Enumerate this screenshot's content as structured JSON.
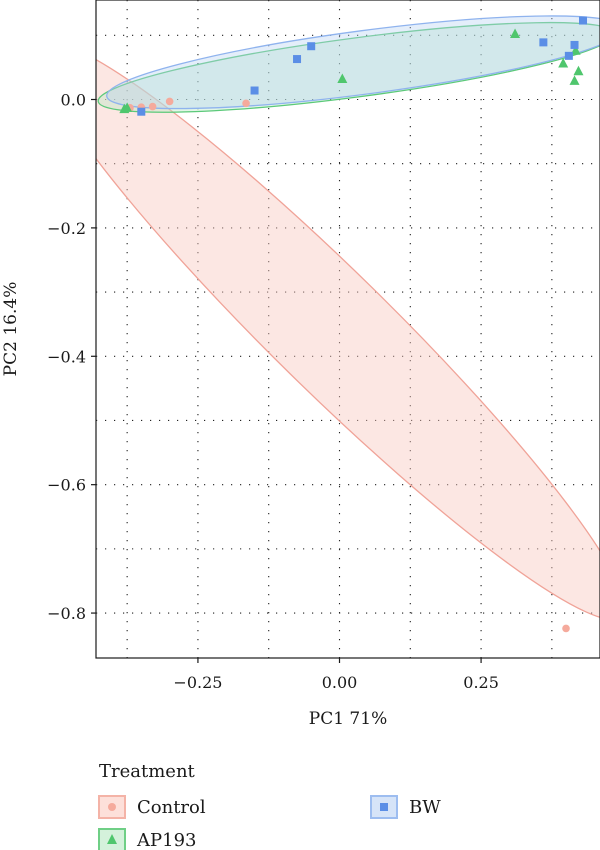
{
  "chart_data": {
    "type": "scatter",
    "xlabel": "PC1 71%",
    "ylabel": "PC2 16.4%",
    "xlim": [
      -0.43,
      0.46
    ],
    "ylim": [
      -0.87,
      0.155
    ],
    "x_ticks": [
      -0.25,
      0.0,
      0.25
    ],
    "x_tick_labels": [
      "−0.25",
      "0.00",
      "0.25"
    ],
    "y_ticks": [
      0.0,
      -0.2,
      -0.4,
      -0.6,
      -0.8
    ],
    "y_tick_labels": [
      "0.0",
      "−0.2",
      "−0.4",
      "−0.6",
      "−0.8"
    ],
    "grid": "dotted",
    "legend": {
      "title": "Treatment",
      "position": "bottom",
      "entries": [
        "Control",
        "AP193",
        "BW"
      ]
    },
    "series": [
      {
        "name": "Control",
        "marker": "circle",
        "color": "#f4a89a",
        "points": [
          {
            "x": -0.37,
            "y": -0.013
          },
          {
            "x": -0.35,
            "y": -0.012
          },
          {
            "x": -0.33,
            "y": -0.011
          },
          {
            "x": -0.3,
            "y": -0.003
          },
          {
            "x": -0.165,
            "y": -0.006
          },
          {
            "x": 0.4,
            "y": -0.824
          }
        ],
        "ellipse": {
          "cx": -0.015,
          "cy": -0.36,
          "rx": 0.72,
          "ry": 0.105,
          "angle_deg": 44.5
        }
      },
      {
        "name": "AP193",
        "marker": "triangle",
        "color": "#5cc97a",
        "points": [
          {
            "x": -0.38,
            "y": -0.015
          },
          {
            "x": -0.375,
            "y": -0.013
          },
          {
            "x": 0.005,
            "y": 0.032
          },
          {
            "x": 0.31,
            "y": 0.102
          },
          {
            "x": 0.395,
            "y": 0.056
          },
          {
            "x": 0.417,
            "y": 0.076
          },
          {
            "x": 0.422,
            "y": 0.044
          },
          {
            "x": 0.415,
            "y": 0.029
          }
        ],
        "ellipse": {
          "cx": 0.03,
          "cy": 0.05,
          "rx": 0.46,
          "ry": 0.052,
          "angle_deg": -7.5
        }
      },
      {
        "name": "BW",
        "marker": "square",
        "color": "#5b8ee6",
        "points": [
          {
            "x": -0.35,
            "y": -0.019
          },
          {
            "x": -0.15,
            "y": 0.014
          },
          {
            "x": -0.075,
            "y": 0.063
          },
          {
            "x": -0.05,
            "y": 0.083
          },
          {
            "x": 0.36,
            "y": 0.089
          },
          {
            "x": 0.405,
            "y": 0.068
          },
          {
            "x": 0.415,
            "y": 0.085
          },
          {
            "x": 0.43,
            "y": 0.123
          }
        ],
        "ellipse": {
          "cx": 0.045,
          "cy": 0.058,
          "rx": 0.46,
          "ry": 0.056,
          "angle_deg": -7.5
        }
      }
    ]
  }
}
